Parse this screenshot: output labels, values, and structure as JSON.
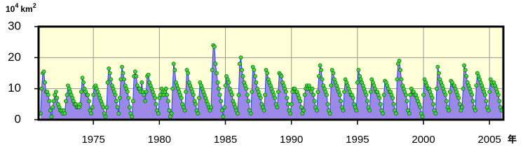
{
  "chart_data": {
    "type": "line",
    "ylabel": [
      "10",
      "4",
      "km",
      "2"
    ],
    "xlabel": "年",
    "xlim": [
      1970.85,
      2006.05
    ],
    "ylim": [
      0,
      30
    ],
    "xticks": [
      1975,
      1980,
      1985,
      1990,
      1995,
      2000,
      2005
    ],
    "yticks": [
      0,
      10,
      20,
      30
    ],
    "grid": true,
    "series": [
      {
        "color": "#2040ff",
        "fill": "#9c88e8",
        "marker_color": "#33dd33",
        "x": [
          1971,
          1971.08,
          1971.17,
          1971.25,
          1971.33,
          1971.42,
          1971.5,
          1971.58,
          1971.67,
          1971.75,
          1971.83,
          1971.92,
          1972,
          1972.08,
          1972.17,
          1972.25,
          1972.33,
          1972.42,
          1972.5,
          1972.58,
          1972.67,
          1972.75,
          1972.83,
          1972.92,
          1973,
          1973.08,
          1973.17,
          1973.25,
          1973.33,
          1973.42,
          1973.5,
          1973.58,
          1973.67,
          1973.75,
          1973.83,
          1973.92,
          1974,
          1974.08,
          1974.17,
          1974.25,
          1974.33,
          1974.42,
          1974.5,
          1974.58,
          1974.67,
          1974.75,
          1974.83,
          1974.92,
          1975,
          1975.08,
          1975.17,
          1975.25,
          1975.33,
          1975.42,
          1975.5,
          1975.58,
          1975.67,
          1975.75,
          1975.83,
          1975.92,
          1976,
          1976.08,
          1976.17,
          1976.25,
          1976.33,
          1976.42,
          1976.5,
          1976.58,
          1976.67,
          1976.75,
          1976.83,
          1976.92,
          1977,
          1977.08,
          1977.17,
          1977.25,
          1977.33,
          1977.42,
          1977.5,
          1977.58,
          1977.67,
          1977.75,
          1977.83,
          1977.92,
          1978,
          1978.08,
          1978.17,
          1978.25,
          1978.33,
          1978.42,
          1978.5,
          1978.58,
          1978.67,
          1978.75,
          1978.83,
          1978.92,
          1979,
          1979.08,
          1979.17,
          1979.25,
          1979.33,
          1979.42,
          1979.5,
          1979.58,
          1979.67,
          1979.75,
          1979.83,
          1979.92,
          1980,
          1980.08,
          1980.17,
          1980.25,
          1980.33,
          1980.42,
          1980.5,
          1980.58,
          1980.67,
          1980.75,
          1980.83,
          1980.92,
          1981,
          1981.08,
          1981.17,
          1981.25,
          1981.33,
          1981.42,
          1981.5,
          1981.58,
          1981.67,
          1981.75,
          1981.83,
          1981.92,
          1982,
          1982.08,
          1982.17,
          1982.25,
          1982.33,
          1982.42,
          1982.5,
          1982.58,
          1982.67,
          1982.75,
          1982.83,
          1982.92,
          1983,
          1983.08,
          1983.17,
          1983.25,
          1983.33,
          1983.42,
          1983.5,
          1983.58,
          1983.67,
          1983.75,
          1983.83,
          1983.92,
          1984,
          1984.08,
          1984.17,
          1984.25,
          1984.33,
          1984.42,
          1984.5,
          1984.58,
          1984.67,
          1984.75,
          1984.83,
          1984.92,
          1985,
          1985.08,
          1985.17,
          1985.25,
          1985.33,
          1985.42,
          1985.5,
          1985.58,
          1985.67,
          1985.75,
          1985.83,
          1985.92,
          1986,
          1986.08,
          1986.17,
          1986.25,
          1986.33,
          1986.42,
          1986.5,
          1986.58,
          1986.67,
          1986.75,
          1986.83,
          1986.92,
          1987,
          1987.08,
          1987.17,
          1987.25,
          1987.33,
          1987.42,
          1987.5,
          1987.58,
          1987.67,
          1987.75,
          1987.83,
          1987.92,
          1988,
          1988.08,
          1988.17,
          1988.25,
          1988.33,
          1988.42,
          1988.5,
          1988.58,
          1988.67,
          1988.75,
          1988.83,
          1988.92,
          1989,
          1989.08,
          1989.17,
          1989.25,
          1989.33,
          1989.42,
          1989.5,
          1989.58,
          1989.67,
          1989.75,
          1989.83,
          1989.92,
          1990,
          1990.08,
          1990.17,
          1990.25,
          1990.33,
          1990.42,
          1990.5,
          1990.58,
          1990.67,
          1990.75,
          1990.83,
          1990.92,
          1991,
          1991.08,
          1991.17,
          1991.25,
          1991.33,
          1991.42,
          1991.5,
          1991.58,
          1991.67,
          1991.75,
          1991.83,
          1991.92,
          1992,
          1992.08,
          1992.17,
          1992.25,
          1992.33,
          1992.42,
          1992.5,
          1992.58,
          1992.67,
          1992.75,
          1992.83,
          1992.92,
          1993,
          1993.08,
          1993.17,
          1993.25,
          1993.33,
          1993.42,
          1993.5,
          1993.58,
          1993.67,
          1993.75,
          1993.83,
          1993.92,
          1994,
          1994.08,
          1994.17,
          1994.25,
          1994.33,
          1994.42,
          1994.5,
          1994.58,
          1994.67,
          1994.75,
          1994.83,
          1994.92,
          1995,
          1995.08,
          1995.17,
          1995.25,
          1995.33,
          1995.42,
          1995.5,
          1995.58,
          1995.67,
          1995.75,
          1995.83,
          1995.92,
          1996,
          1996.08,
          1996.17,
          1996.25,
          1996.33,
          1996.42,
          1996.5,
          1996.58,
          1996.67,
          1996.75,
          1996.83,
          1996.92,
          1997,
          1997.08,
          1997.17,
          1997.25,
          1997.33,
          1997.42,
          1997.5,
          1997.58,
          1997.67,
          1997.75,
          1997.83,
          1997.92,
          1998,
          1998.08,
          1998.17,
          1998.25,
          1998.33,
          1998.42,
          1998.5,
          1998.58,
          1998.67,
          1998.75,
          1998.83,
          1998.92,
          1999,
          1999.08,
          1999.17,
          1999.25,
          1999.33,
          1999.42,
          1999.5,
          1999.58,
          1999.67,
          1999.75,
          1999.83,
          1999.92,
          2000,
          2000.08,
          2000.17,
          2000.25,
          2000.33,
          2000.42,
          2000.5,
          2000.58,
          2000.67,
          2000.75,
          2000.83,
          2000.92,
          2001,
          2001.08,
          2001.17,
          2001.25,
          2001.33,
          2001.42,
          2001.5,
          2001.58,
          2001.67,
          2001.75,
          2001.83,
          2001.92,
          2002,
          2002.08,
          2002.17,
          2002.25,
          2002.33,
          2002.42,
          2002.5,
          2002.58,
          2002.67,
          2002.75,
          2002.83,
          2002.92,
          2003,
          2003.08,
          2003.17,
          2003.25,
          2003.33,
          2003.42,
          2003.5,
          2003.58,
          2003.67,
          2003.75,
          2003.83,
          2003.92,
          2004,
          2004.08,
          2004.17,
          2004.25,
          2004.33,
          2004.42,
          2004.5,
          2004.58,
          2004.67,
          2004.75,
          2004.83,
          2004.92,
          2005,
          2005.08,
          2005.17,
          2005.25,
          2005.33,
          2005.42,
          2005.5,
          2005.58,
          2005.67,
          2005.75,
          2005.83,
          2005.92
        ],
        "values": [
          2,
          10,
          15,
          15.5,
          12,
          9,
          9,
          8,
          6,
          3,
          1,
          4,
          6,
          8,
          9,
          7,
          5,
          4,
          3,
          3,
          2,
          3,
          2,
          6,
          8,
          11,
          10,
          9,
          8,
          7,
          6,
          5,
          5,
          4,
          4,
          4,
          5,
          9,
          13.5,
          12,
          10,
          9,
          8,
          8,
          6,
          3,
          2,
          4,
          8,
          10.5,
          11,
          10,
          9,
          8,
          7,
          6,
          5,
          4,
          2,
          1,
          4,
          12,
          16.5,
          15,
          13,
          11,
          10,
          9,
          8,
          6,
          4,
          2,
          7,
          13,
          17,
          15,
          13,
          11,
          10,
          9,
          7,
          4,
          2,
          1,
          6,
          14,
          15.5,
          14,
          11,
          10,
          10,
          9,
          12,
          9,
          8,
          6,
          9,
          14,
          14.5,
          12,
          11,
          10,
          9,
          8,
          7,
          5,
          3,
          2,
          7,
          8,
          10,
          9,
          8,
          9,
          10,
          8,
          6,
          3,
          1,
          2,
          10,
          18,
          16,
          12,
          11,
          10,
          9,
          8,
          7,
          5,
          4,
          3,
          9,
          16,
          15,
          12,
          11,
          10,
          9,
          8,
          6,
          5,
          3,
          2,
          7,
          12,
          11,
          10,
          9,
          8,
          7,
          6,
          5,
          4,
          3,
          4,
          16,
          24,
          23.5,
          18,
          15,
          12,
          10,
          8,
          6,
          3,
          1,
          4,
          11,
          14,
          13,
          12,
          10,
          9,
          8,
          6,
          5,
          4,
          3,
          2,
          8,
          18,
          20,
          16,
          14,
          12,
          11,
          10,
          8,
          6,
          3,
          2,
          9,
          17,
          16,
          14,
          12,
          10,
          9,
          8,
          7,
          5,
          4,
          3,
          8,
          16,
          15,
          13,
          12,
          11,
          10,
          9,
          8,
          7,
          5,
          4,
          9,
          15,
          14.5,
          14,
          12,
          11,
          10,
          9,
          7,
          5,
          3,
          2,
          5,
          9,
          10,
          10,
          9,
          9,
          8,
          7,
          6,
          4,
          2,
          3,
          8,
          10,
          11,
          10,
          11,
          10,
          9,
          10,
          8,
          6,
          4,
          3,
          9,
          14,
          17.5,
          16,
          13,
          11,
          10,
          9,
          8,
          5,
          3,
          2,
          11,
          16,
          15,
          13,
          12,
          11,
          10,
          9,
          8,
          6,
          4,
          3,
          9,
          13,
          12,
          11,
          10,
          9,
          8,
          8,
          7,
          5,
          4,
          3,
          12,
          16,
          14,
          13,
          12,
          11,
          10,
          9,
          8,
          6,
          4,
          3,
          9,
          13,
          12,
          11,
          10,
          9,
          9,
          8,
          7,
          5,
          3,
          2,
          8,
          12.5,
          12,
          11,
          10,
          9,
          9,
          8,
          7,
          5,
          3,
          2,
          13,
          18,
          19,
          16,
          13,
          11,
          10,
          9,
          8,
          6,
          3,
          2,
          8,
          10,
          9,
          9,
          8,
          8,
          7,
          6,
          5,
          4,
          2,
          1,
          8,
          13,
          12,
          11,
          10,
          10,
          9,
          8,
          7,
          5,
          3,
          2,
          10,
          17,
          15,
          13,
          12,
          11,
          10,
          9,
          8,
          6,
          4,
          3,
          9,
          12.5,
          12,
          11,
          11,
          10,
          9,
          8,
          7,
          5,
          3,
          4,
          10,
          17.5,
          16,
          14,
          12,
          11,
          10,
          9,
          8,
          6,
          4,
          3,
          11,
          15,
          14,
          13,
          12,
          11,
          10,
          9,
          8,
          6,
          4,
          3,
          9,
          13,
          12,
          11,
          12,
          11,
          10,
          9,
          8,
          6,
          4,
          3
        ]
      }
    ]
  }
}
